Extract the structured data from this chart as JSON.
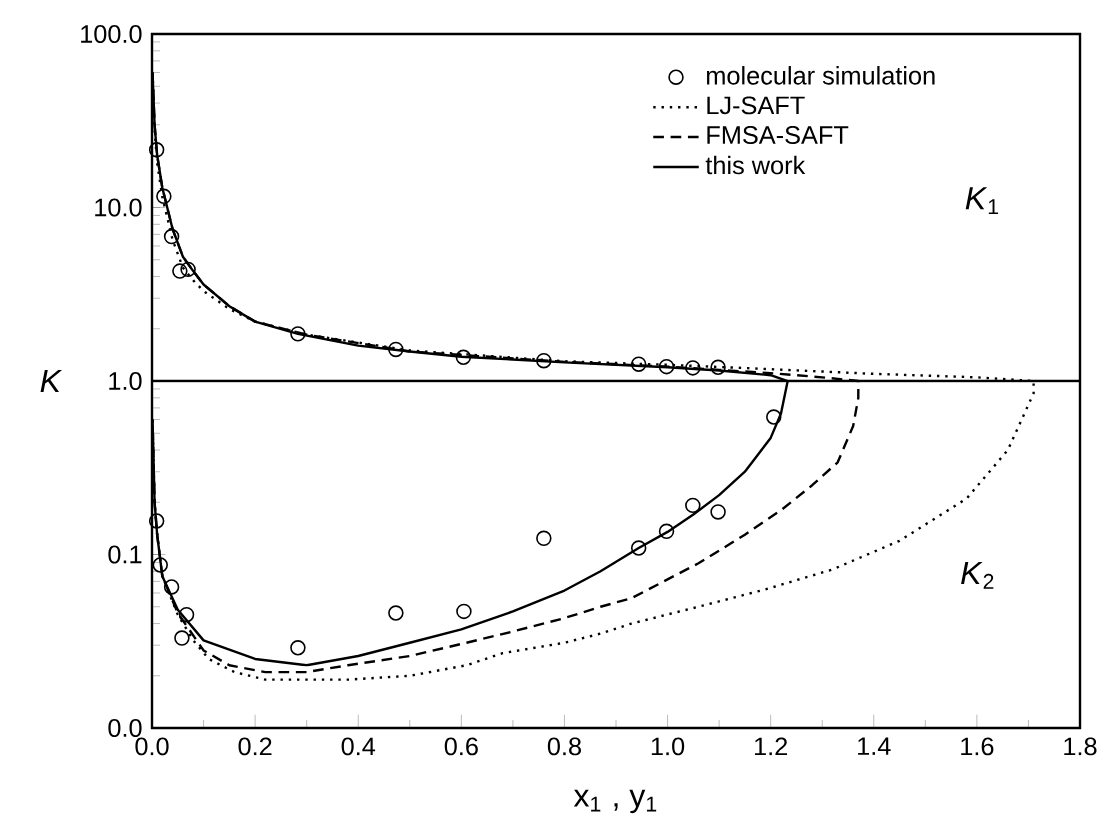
{
  "chart_data": {
    "type": "line",
    "xlabel": "x$_{1}$ , y$_{1}$",
    "ylabel": "K",
    "log": "y",
    "xlim": [
      0.0,
      1.8
    ],
    "xticks": [
      {
        "value": 0.0,
        "label": "0.0"
      },
      0.2,
      0.4,
      0.6,
      0.8,
      {
        "value": 1.0,
        "label": "1.0"
      },
      1.2,
      1.4,
      1.6,
      1.8
    ],
    "ylim": [
      0.01,
      100
    ],
    "yticks": [
      {
        "value": 0.01,
        "label": "0.0"
      },
      0.1,
      {
        "value": 1,
        "label": "1.0"
      },
      {
        "value": 10,
        "label": "10.0"
      },
      {
        "value": 100,
        "label": "100.0"
      }
    ],
    "legend": "top right",
    "grid": false,
    "ref_lines": [
      {
        "axis": "y",
        "value": 1
      }
    ],
    "annotations": [
      "*K*$_{1}$",
      "*K*$_{2}$"
    ],
    "series": [
      {
        "name": "molecular simulation",
        "type": "scatter",
        "marker": "circle",
        "color": "#000000",
        "x": [
          0.009,
          0.023,
          0.038,
          0.054,
          0.07,
          0.283,
          0.473,
          0.604,
          0.76,
          0.944,
          0.998,
          1.049,
          1.098,
          0.009,
          0.016,
          0.038,
          0.058,
          0.067,
          0.283,
          0.473,
          0.605,
          0.76,
          0.944,
          0.998,
          1.049,
          1.098,
          1.206
        ],
        "values": [
          21.5,
          11.6,
          6.8,
          4.3,
          4.4,
          1.87,
          1.52,
          1.37,
          1.31,
          1.25,
          1.21,
          1.19,
          1.2,
          0.156,
          0.087,
          0.065,
          0.033,
          0.045,
          0.029,
          0.046,
          0.047,
          0.124,
          0.109,
          0.136,
          0.192,
          0.176,
          0.62
        ]
      },
      {
        "name": "LJ-SAFT",
        "line_style": "dotted",
        "color": "#000000",
        "x": [
          0.001,
          0.005,
          0.01,
          0.02,
          0.04,
          0.06,
          0.08,
          0.1,
          0.15,
          0.2,
          0.3,
          0.5,
          0.8,
          1.0,
          1.2,
          1.4,
          1.6,
          1.71,
          1.71,
          1.66,
          1.58,
          1.45,
          1.32,
          1.19,
          1.06,
          0.93,
          0.87,
          0.8,
          0.68,
          0.61,
          0.5,
          0.38,
          0.29,
          0.22,
          0.16,
          0.11,
          0.08,
          0.05,
          0.02,
          0.01,
          0.005,
          0.001
        ],
        "values": [
          60,
          28,
          18,
          11.5,
          6.5,
          4.5,
          3.8,
          3.3,
          2.6,
          2.2,
          1.85,
          1.5,
          1.3,
          1.24,
          1.17,
          1.1,
          1.05,
          1.0,
          0.85,
          0.4,
          0.21,
          0.12,
          0.082,
          0.063,
          0.05,
          0.04,
          0.035,
          0.031,
          0.027,
          0.023,
          0.02,
          0.019,
          0.019,
          0.019,
          0.021,
          0.025,
          0.032,
          0.045,
          0.075,
          0.13,
          0.2,
          0.6
        ]
      },
      {
        "name": "FMSA-SAFT",
        "line_style": "dashed",
        "color": "#000000",
        "x": [
          0.001,
          0.005,
          0.01,
          0.02,
          0.04,
          0.06,
          0.08,
          0.1,
          0.15,
          0.2,
          0.3,
          0.5,
          0.8,
          1.0,
          1.1,
          1.2,
          1.3,
          1.37,
          1.37,
          1.36,
          1.33,
          1.28,
          1.22,
          1.15,
          1.06,
          0.93,
          0.87,
          0.8,
          0.7,
          0.61,
          0.5,
          0.38,
          0.3,
          0.22,
          0.15,
          0.1,
          0.05,
          0.02,
          0.01,
          0.005,
          0.001
        ],
        "values": [
          60,
          30,
          20,
          13,
          7.5,
          5.2,
          4.3,
          3.6,
          2.7,
          2.2,
          1.85,
          1.48,
          1.29,
          1.21,
          1.16,
          1.11,
          1.05,
          1.0,
          0.8,
          0.55,
          0.34,
          0.25,
          0.18,
          0.13,
          0.089,
          0.056,
          0.05,
          0.043,
          0.036,
          0.031,
          0.026,
          0.023,
          0.021,
          0.021,
          0.023,
          0.028,
          0.046,
          0.075,
          0.13,
          0.2,
          0.6
        ]
      },
      {
        "name": "this work",
        "line_style": "solid",
        "color": "#000000",
        "x": [
          0.001,
          0.005,
          0.01,
          0.02,
          0.04,
          0.06,
          0.08,
          0.1,
          0.15,
          0.2,
          0.283,
          0.4,
          0.5,
          0.6,
          0.8,
          1.0,
          1.1,
          1.2,
          1.233,
          1.22,
          1.2,
          1.15,
          1.1,
          1.05,
          1.0,
          0.944,
          0.87,
          0.8,
          0.7,
          0.6,
          0.5,
          0.4,
          0.3,
          0.2,
          0.1,
          0.05,
          0.02,
          0.01,
          0.005,
          0.001
        ],
        "values": [
          60,
          30,
          20,
          13,
          7.5,
          5.2,
          4.3,
          3.6,
          2.7,
          2.2,
          1.87,
          1.6,
          1.48,
          1.38,
          1.28,
          1.2,
          1.15,
          1.08,
          1.0,
          0.65,
          0.47,
          0.3,
          0.22,
          0.17,
          0.135,
          0.109,
          0.08,
          0.062,
          0.047,
          0.037,
          0.031,
          0.026,
          0.023,
          0.025,
          0.032,
          0.048,
          0.075,
          0.13,
          0.2,
          0.6
        ]
      }
    ]
  }
}
